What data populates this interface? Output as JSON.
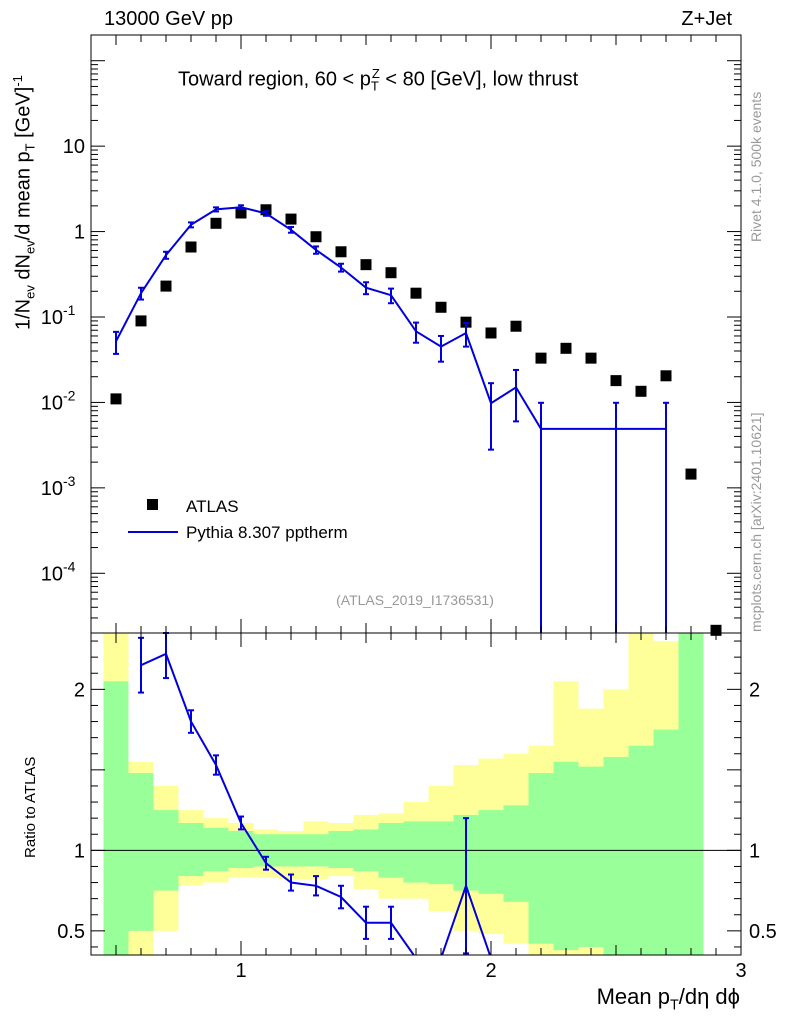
{
  "header": {
    "left": "13000 GeV pp",
    "right": "Z+Jet"
  },
  "side_labels": {
    "rivet": "Rivet 4.1.0,  500k events",
    "mcplots": "mcplots.cern.ch [arXiv:2401.10621]"
  },
  "colors": {
    "mc": "#0000dd",
    "data": "#000000",
    "band_inner": "#99ff99",
    "band_outer": "#ffff99"
  },
  "chart_data": [
    {
      "type": "scatter",
      "panel": "main",
      "title": "Toward region, 60 < p_T^Z < 80 [GeV], low thrust",
      "title_parts": {
        "pre": "Toward region, 60 < p",
        "sub": "T",
        "sup": "Z",
        "post": " < 80 [GeV], low thrust"
      },
      "ylabel_parts": {
        "a": "1/N",
        "a_sub": "ev",
        "b": " dN",
        "b_sub": "ev",
        "c": "/d mean p",
        "c_sub": "T",
        "d": " [GeV]",
        "d_sup": "-1"
      },
      "yscale": "log",
      "ylim": [
        2e-05,
        200
      ],
      "xlim": [
        0.4,
        3.0
      ],
      "ytick_labels": [
        {
          "value": 10,
          "label": "10"
        },
        {
          "value": 1,
          "label": "1"
        },
        {
          "value": 0.1,
          "base": "10",
          "exp": "-1"
        },
        {
          "value": 0.01,
          "base": "10",
          "exp": "-2"
        },
        {
          "value": 0.001,
          "base": "10",
          "exp": "-3"
        },
        {
          "value": 0.0001,
          "base": "10",
          "exp": "-4"
        }
      ],
      "watermark": "(ATLAS_2019_I1736531)",
      "legend": [
        "ATLAS",
        "Pythia 8.307 pptherm"
      ],
      "legend_position": "lower-left",
      "series": [
        {
          "name": "ATLAS",
          "marker": "square",
          "x": [
            0.5,
            0.6,
            0.7,
            0.8,
            0.9,
            1.0,
            1.1,
            1.2,
            1.3,
            1.4,
            1.5,
            1.6,
            1.7,
            1.8,
            1.9,
            2.0,
            2.1,
            2.2,
            2.3,
            2.4,
            2.5,
            2.6,
            2.7,
            2.8,
            2.9
          ],
          "y": [
            0.011,
            0.09,
            0.23,
            0.66,
            1.25,
            1.65,
            1.8,
            1.4,
            0.87,
            0.58,
            0.41,
            0.33,
            0.19,
            0.13,
            0.087,
            0.065,
            0.078,
            0.033,
            0.043,
            0.033,
            0.018,
            0.0135,
            0.0205,
            0.00145,
            2.15e-05
          ]
        },
        {
          "name": "Pythia 8.307 pptherm",
          "style": "line",
          "x": [
            0.5,
            0.6,
            0.7,
            0.8,
            0.9,
            1.0,
            1.1,
            1.2,
            1.3,
            1.4,
            1.5,
            1.6,
            1.7,
            1.8,
            1.9,
            2.0,
            2.1,
            2.2,
            2.5,
            2.7
          ],
          "y": [
            0.052,
            0.19,
            0.53,
            1.2,
            1.82,
            1.93,
            1.63,
            1.05,
            0.61,
            0.38,
            0.22,
            0.18,
            0.068,
            0.045,
            0.065,
            0.0098,
            0.015,
            0.0049,
            0.0049,
            0.0049
          ],
          "yerr_low": [
            0.015,
            0.03,
            0.05,
            0.08,
            0.1,
            0.1,
            0.1,
            0.08,
            0.06,
            0.04,
            0.035,
            0.035,
            0.018,
            0.015,
            0.02,
            0.007,
            0.009,
            0.00489,
            0.00489,
            0.00489
          ],
          "yerr_high": [
            0.015,
            0.03,
            0.05,
            0.08,
            0.1,
            0.1,
            0.1,
            0.08,
            0.06,
            0.04,
            0.035,
            0.035,
            0.018,
            0.015,
            0.02,
            0.007,
            0.009,
            0.005,
            0.005,
            0.005
          ]
        }
      ]
    },
    {
      "type": "line",
      "panel": "ratio",
      "ylabel": "Ratio to ATLAS",
      "xlabel_parts": {
        "pre": "Mean p",
        "sub": "T",
        "post": "/dη dϕ"
      },
      "ylim": [
        0.35,
        2.35
      ],
      "xlim": [
        0.4,
        3.0
      ],
      "ytick_labels": [
        {
          "value": 0.5,
          "label": "0.5"
        },
        {
          "value": 1,
          "label": "1"
        },
        {
          "value": 2,
          "label": "2"
        }
      ],
      "xtick_labels": [
        {
          "value": 1,
          "label": "1"
        },
        {
          "value": 2,
          "label": "2"
        },
        {
          "value": 3,
          "label": "3"
        }
      ],
      "bins": {
        "edges": [
          0.45,
          0.55,
          0.65,
          0.75,
          0.85,
          0.95,
          1.05,
          1.15,
          1.25,
          1.35,
          1.45,
          1.55,
          1.65,
          1.75,
          1.85,
          1.95,
          2.05,
          2.15,
          2.25,
          2.35,
          2.45,
          2.55,
          2.65,
          2.75,
          2.85
        ],
        "inner_hi": [
          2.05,
          1.48,
          1.25,
          1.17,
          1.14,
          1.12,
          1.1,
          1.1,
          1.1,
          1.12,
          1.13,
          1.17,
          1.18,
          1.18,
          1.22,
          1.25,
          1.28,
          1.48,
          1.55,
          1.52,
          1.58,
          1.65,
          1.75,
          2.35
        ],
        "inner_lo": [
          0.35,
          0.5,
          0.75,
          0.84,
          0.87,
          0.89,
          0.9,
          0.9,
          0.9,
          0.89,
          0.87,
          0.83,
          0.8,
          0.79,
          0.75,
          0.73,
          0.68,
          0.42,
          0.38,
          0.4,
          0.35,
          0.35,
          0.35,
          0.35
        ],
        "outer_hi": [
          2.35,
          1.55,
          1.4,
          1.25,
          1.2,
          1.17,
          1.13,
          1.12,
          1.18,
          1.17,
          1.22,
          1.23,
          1.3,
          1.4,
          1.53,
          1.57,
          1.6,
          1.65,
          2.05,
          1.88,
          2.0,
          2.35,
          2.3,
          2.35
        ],
        "outer_lo": [
          0.35,
          0.35,
          0.5,
          0.78,
          0.8,
          0.83,
          0.83,
          0.82,
          0.82,
          0.84,
          0.76,
          0.7,
          0.7,
          0.62,
          0.5,
          0.48,
          0.42,
          0.35,
          0.35,
          0.35,
          0.35,
          0.35,
          0.35,
          0.35
        ]
      },
      "series": [
        {
          "name": "Pythia 8.307 pptherm / ATLAS",
          "x": [
            0.6,
            0.7,
            0.8,
            0.9,
            1.0,
            1.1,
            1.2,
            1.3,
            1.4,
            1.5,
            1.6,
            1.7,
            1.8,
            1.9,
            2.0
          ],
          "y": [
            2.15,
            2.22,
            1.8,
            1.53,
            1.17,
            0.92,
            0.8,
            0.78,
            0.71,
            0.55,
            0.55,
            0.33,
            0.33,
            0.78,
            0.33
          ],
          "yerr": [
            0.17,
            0.15,
            0.07,
            0.06,
            0.04,
            0.04,
            0.05,
            0.06,
            0.07,
            0.1,
            0.1,
            0.0,
            0.0,
            0.42,
            0.0
          ]
        }
      ],
      "reference_line": 1
    }
  ]
}
